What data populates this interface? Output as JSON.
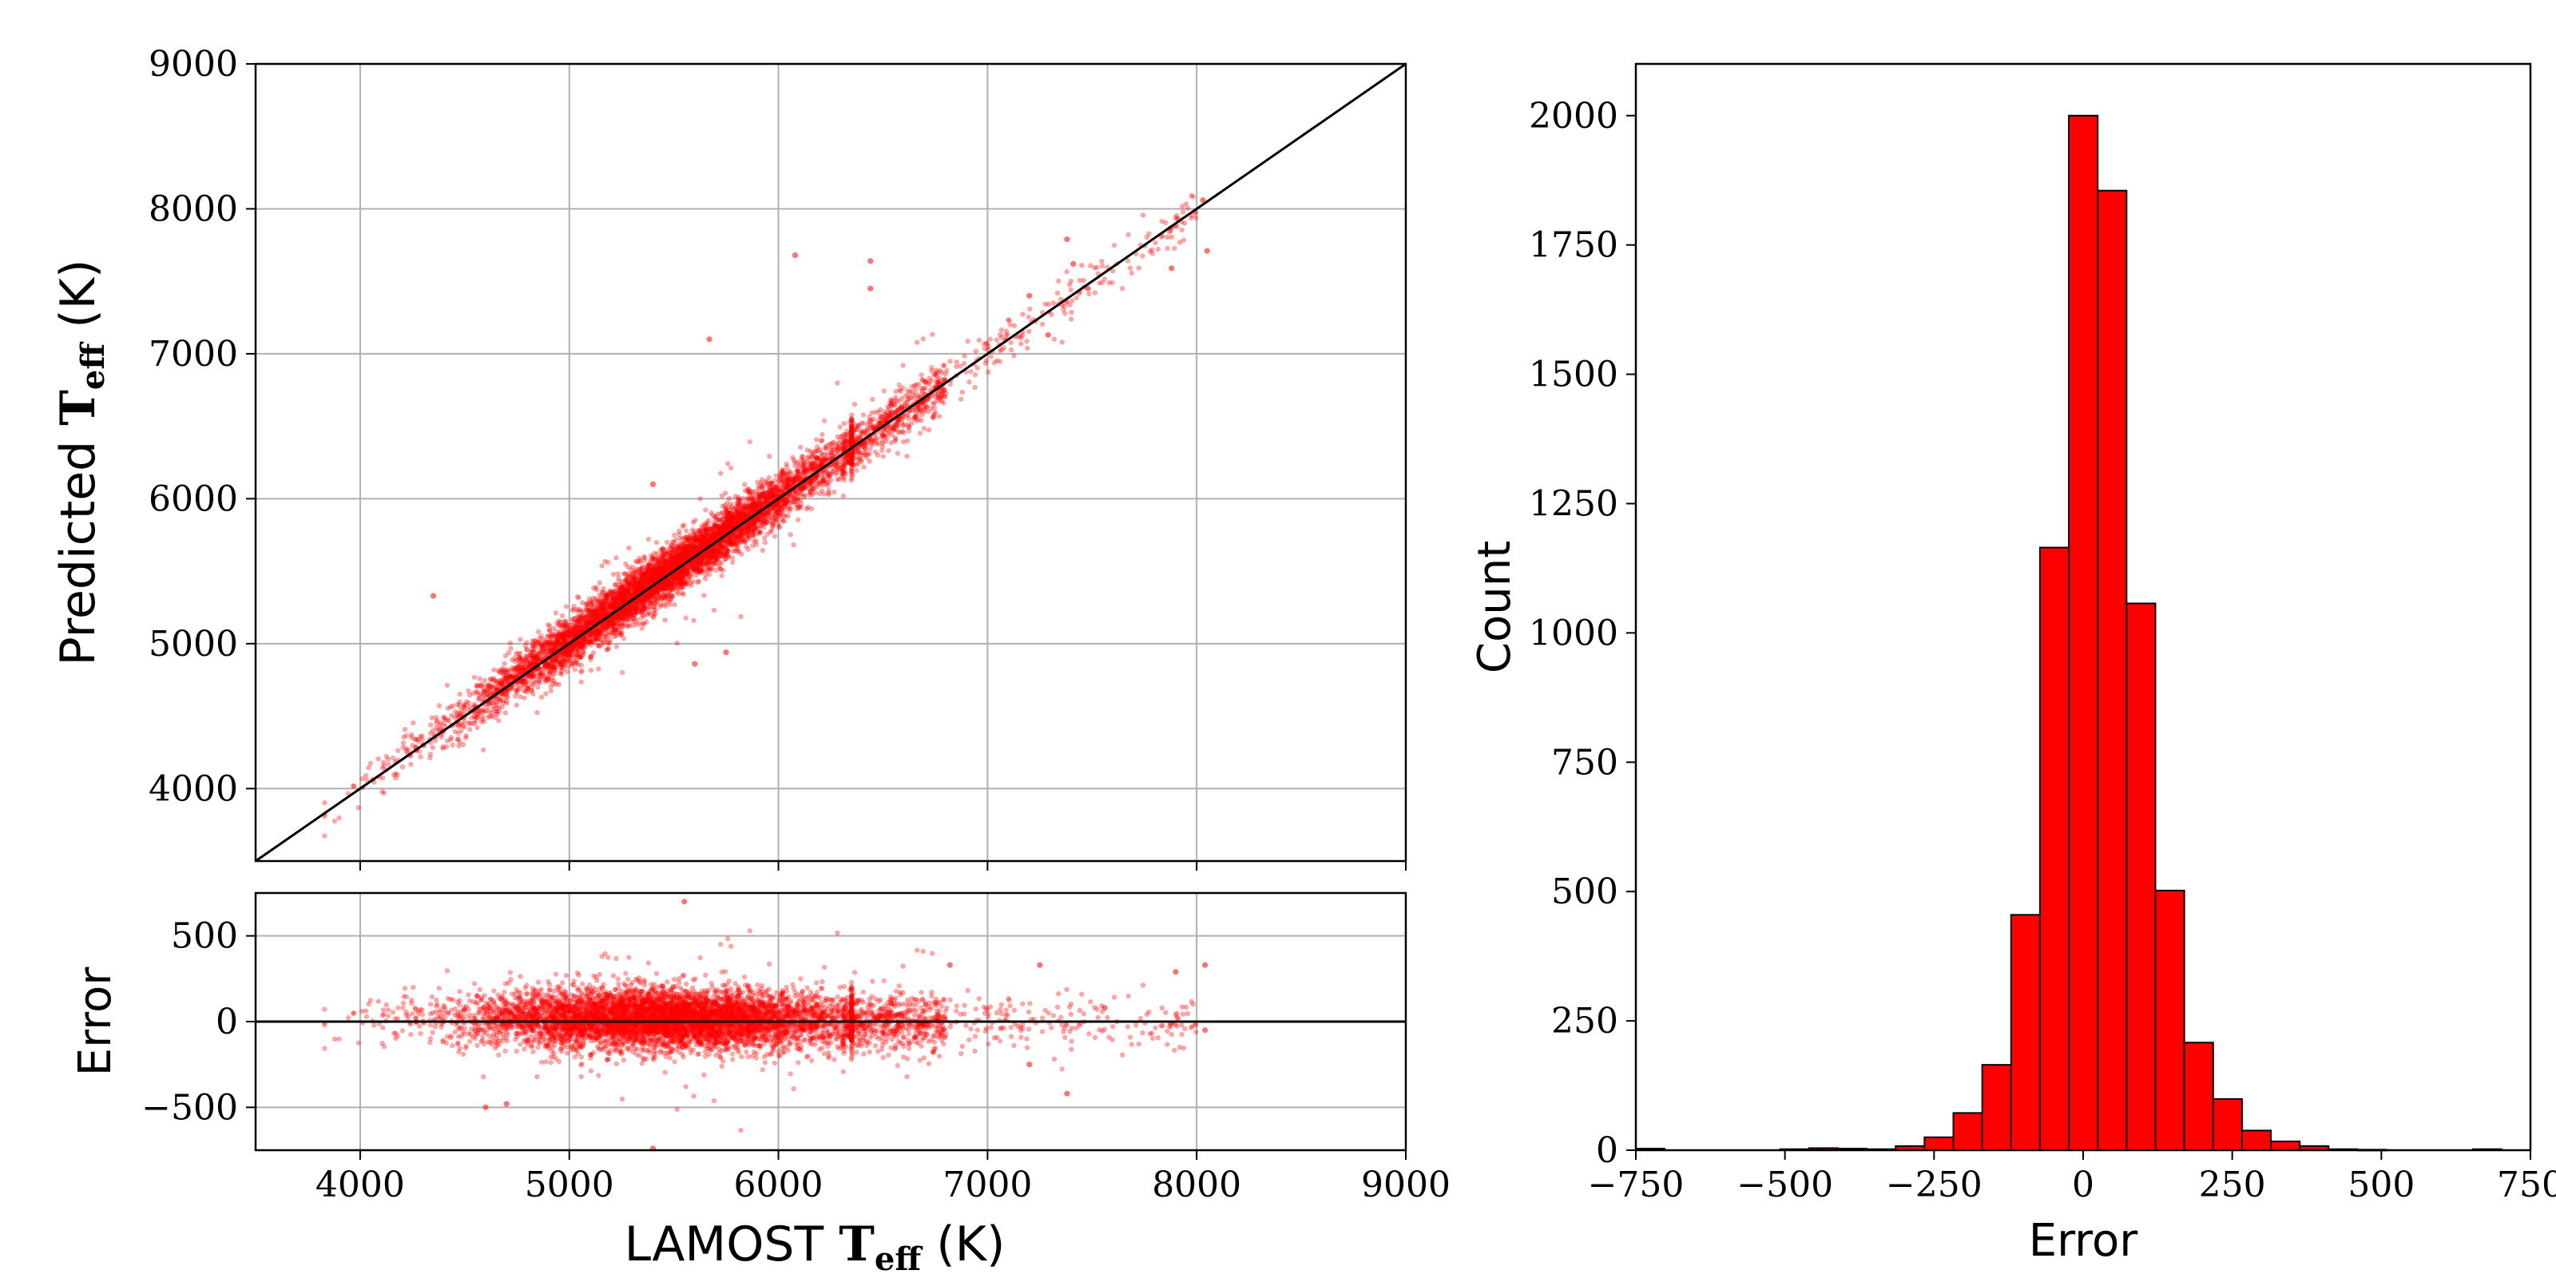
{
  "chart_data": [
    {
      "id": "main-scatter",
      "type": "scatter",
      "title": "",
      "xlabel": "",
      "ylabel": {
        "prefix": "Predicted ",
        "symbol": "T",
        "subscript": "eff",
        "unit": " (K)"
      },
      "xlim": [
        3500,
        9000
      ],
      "ylim": [
        3500,
        9000
      ],
      "x_ticks": [
        4000,
        5000,
        6000,
        7000,
        8000,
        9000
      ],
      "y_ticks": [
        4000,
        5000,
        6000,
        7000,
        8000,
        9000
      ],
      "x_tick_labels_shown": false,
      "y_tick_labels": [
        "4000",
        "5000",
        "6000",
        "7000",
        "8000",
        "9000"
      ],
      "grid": true,
      "marker_color": "#ff0000",
      "marker_alpha": 0.35,
      "reference_line": {
        "from": [
          3500,
          3500
        ],
        "to": [
          9000,
          9000
        ],
        "color": "#000000"
      },
      "points_description_values": {
        "x_range": [
          3820,
          8050
        ],
        "trend": "predicted ≈ LAMOST with scatter ~100 K",
        "outliers": [
          [
            4350,
            5330
          ],
          [
            5400,
            6100
          ],
          [
            5600,
            4860
          ],
          [
            5750,
            4940
          ],
          [
            5670,
            7100
          ],
          [
            6080,
            7680
          ],
          [
            6440,
            7640
          ],
          [
            6440,
            7450
          ],
          [
            7200,
            7400
          ],
          [
            7290,
            7130
          ],
          [
            7380,
            7790
          ],
          [
            7410,
            7620
          ],
          [
            7480,
            7450
          ],
          [
            7880,
            7590
          ],
          [
            8030,
            8060
          ],
          [
            8050,
            7710
          ]
        ]
      }
    },
    {
      "id": "residual-scatter",
      "type": "scatter",
      "xlabel": {
        "prefix": "LAMOST ",
        "symbol": "T",
        "subscript": "eff",
        "unit": " (K)"
      },
      "ylabel": "Error",
      "xlim": [
        3500,
        9000
      ],
      "ylim": [
        -750,
        750
      ],
      "x_ticks": [
        4000,
        5000,
        6000,
        7000,
        8000,
        9000
      ],
      "x_tick_labels": [
        "4000",
        "5000",
        "6000",
        "7000",
        "8000",
        "9000"
      ],
      "y_ticks": [
        -500,
        0,
        500
      ],
      "y_tick_labels": [
        "−500",
        "0",
        "500"
      ],
      "grid": true,
      "marker_color": "#ff0000",
      "reference_line": {
        "y": 0,
        "color": "#000000"
      },
      "points_description_values": {
        "x_range": [
          3820,
          8050
        ],
        "error_spread": "mostly within ±250",
        "outliers": [
          [
            5550,
            700
          ],
          [
            5400,
            -740
          ],
          [
            4600,
            -500
          ],
          [
            4700,
            -480
          ],
          [
            7380,
            -420
          ],
          [
            7200,
            -250
          ],
          [
            7900,
            290
          ],
          [
            8040,
            330
          ],
          [
            7250,
            330
          ],
          [
            6820,
            330
          ],
          [
            7560,
            80
          ],
          [
            8040,
            -50
          ]
        ]
      }
    },
    {
      "id": "error-histogram",
      "type": "bar",
      "xlabel": "Error",
      "ylabel": "Count",
      "xlim": [
        -750,
        750
      ],
      "ylim": [
        0,
        2100
      ],
      "x_ticks": [
        -750,
        -500,
        -250,
        0,
        250,
        500,
        750
      ],
      "x_tick_labels": [
        "−750",
        "−500",
        "−250",
        "0",
        "250",
        "500",
        "750"
      ],
      "y_ticks": [
        0,
        250,
        500,
        750,
        1000,
        1250,
        1500,
        1750,
        2000
      ],
      "y_tick_labels": [
        "0",
        "250",
        "500",
        "750",
        "1000",
        "1250",
        "1500",
        "1750",
        "2000"
      ],
      "grid": false,
      "bar_color": "#ff0000",
      "edge_color": "#000000",
      "bin_width": 48.4,
      "bins": [
        {
          "left": -750.0,
          "count": 3
        },
        {
          "left": -701.6,
          "count": 0
        },
        {
          "left": -653.2,
          "count": 0
        },
        {
          "left": -604.8,
          "count": 0
        },
        {
          "left": -556.4,
          "count": 0
        },
        {
          "left": -508.0,
          "count": 2
        },
        {
          "left": -459.6,
          "count": 4
        },
        {
          "left": -411.2,
          "count": 3
        },
        {
          "left": -362.8,
          "count": 2
        },
        {
          "left": -314.4,
          "count": 8
        },
        {
          "left": -266.0,
          "count": 25
        },
        {
          "left": -217.6,
          "count": 72
        },
        {
          "left": -169.2,
          "count": 165
        },
        {
          "left": -120.8,
          "count": 455
        },
        {
          "left": -72.4,
          "count": 1165
        },
        {
          "left": -24.0,
          "count": 2000
        },
        {
          "left": 24.4,
          "count": 1855
        },
        {
          "left": 72.8,
          "count": 1057
        },
        {
          "left": 121.2,
          "count": 502
        },
        {
          "left": 169.6,
          "count": 208
        },
        {
          "left": 218.0,
          "count": 99
        },
        {
          "left": 266.4,
          "count": 38
        },
        {
          "left": 314.8,
          "count": 17
        },
        {
          "left": 363.2,
          "count": 8
        },
        {
          "left": 411.6,
          "count": 2
        },
        {
          "left": 460.0,
          "count": 1
        },
        {
          "left": 508.4,
          "count": 0
        },
        {
          "left": 556.8,
          "count": 0
        },
        {
          "left": 605.2,
          "count": 0
        },
        {
          "left": 653.6,
          "count": 2
        }
      ]
    }
  ]
}
